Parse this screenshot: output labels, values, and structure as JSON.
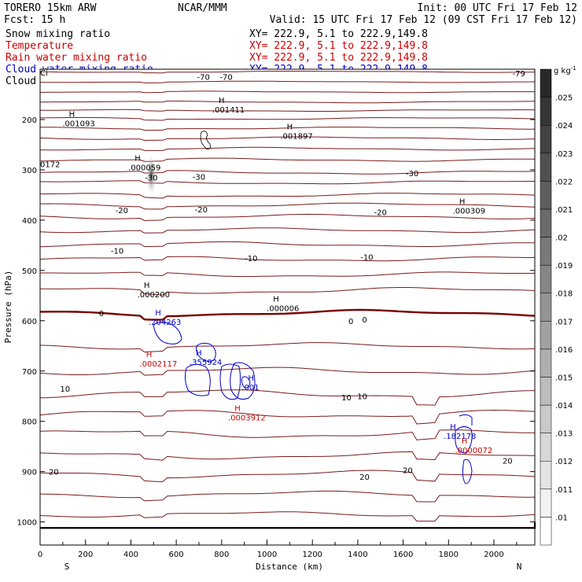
{
  "header": {
    "model": "TORERO  15km ARW",
    "center": "NCAR/MMM",
    "init": "Init: 00 UTC Fri 17 Feb 12",
    "fcst": "Fcst:   15 h",
    "valid": "Valid: 15 UTC Fri 17 Feb 12 (09 CST Fri 17 Feb 12)"
  },
  "fields": [
    {
      "name": "Snow mixing ratio",
      "xy": "XY= 222.9,  5.1 to 222.9,149.8",
      "color": "#000000"
    },
    {
      "name": "Temperature",
      "xy": "XY= 222.9,  5.1 to 222.9,149.8",
      "color": "#cc0000"
    },
    {
      "name": "Rain water mixing ratio",
      "xy": "XY= 222.9,  5.1 to 222.9,149.8",
      "color": "#cc0000"
    },
    {
      "name": "Cloud water mixing ratio",
      "xy": "XY= 222.9,  5.1 to 222.9,149.8",
      "color": "#0000cc"
    },
    {
      "name": "Cloud ice mixing ratio",
      "xy": "XY= 222.9,  5.1 to 222.9,149.8",
      "color": "#000000"
    }
  ],
  "colors": {
    "temperature": "#7a1a1a",
    "zero_isotherm": "#7a0000",
    "rain": "#cc0000",
    "cloud": "#0000cc",
    "snow": "#000000"
  },
  "chart_data": {
    "type": "cross-section",
    "xlabel": "Distance (km)",
    "ylabel": "Pressure (hPa)",
    "xlim": [
      0,
      2180
    ],
    "ylim": [
      1050,
      100
    ],
    "x_ticks": [
      0,
      200,
      400,
      600,
      800,
      1000,
      1200,
      1400,
      1600,
      1800,
      2000
    ],
    "y_ticks": [
      200,
      300,
      400,
      500,
      600,
      700,
      800,
      900,
      1000
    ],
    "endpoints": {
      "left": "S",
      "right": "N"
    },
    "colorbar": {
      "unit": "g kg",
      "unit_exp": "-1",
      "ticks": [
        ".01",
        ".011",
        ".012",
        ".013",
        ".014",
        ".015",
        ".016",
        ".017",
        ".018",
        ".019",
        ".02",
        ".021",
        ".022",
        ".023",
        ".024",
        ".025"
      ]
    },
    "temperature_contours": [
      {
        "level": -70,
        "p": 105,
        "amp": 3
      },
      {
        "level": -70,
        "p": 125,
        "amp": 3
      },
      {
        "level": -70,
        "p": 145,
        "amp": 3
      },
      {
        "level": -70,
        "p": 165,
        "amp": 4
      },
      {
        "level": -70,
        "p": 182,
        "amp": 4
      },
      {
        "level": -60,
        "p": 198,
        "amp": 5
      },
      {
        "level": -60,
        "p": 217,
        "amp": 5
      },
      {
        "level": -50,
        "p": 237,
        "amp": 6
      },
      {
        "level": -40,
        "p": 258,
        "amp": 6
      },
      {
        "level": -40,
        "p": 280,
        "amp": 7
      },
      {
        "level": -30,
        "p": 305,
        "amp": 8
      },
      {
        "level": -30,
        "p": 325,
        "amp": 8
      },
      {
        "level": -20,
        "p": 350,
        "amp": 9
      },
      {
        "level": -20,
        "p": 370,
        "amp": 9
      },
      {
        "level": -20,
        "p": 393,
        "amp": 10
      },
      {
        "level": -10,
        "p": 420,
        "amp": 10
      },
      {
        "level": -10,
        "p": 448,
        "amp": 11
      },
      {
        "level": -10,
        "p": 477,
        "amp": 11
      },
      {
        "level": -10,
        "p": 508,
        "amp": 12
      },
      {
        "level": -10,
        "p": 540,
        "amp": 14
      },
      {
        "level": 0,
        "p": 585,
        "amp": 14,
        "bold": true
      },
      {
        "level": 0,
        "p": 650,
        "amp": 14
      },
      {
        "level": 10,
        "p": 700,
        "amp": 16
      },
      {
        "level": 10,
        "p": 745,
        "amp": 18
      },
      {
        "level": 10,
        "p": 785,
        "amp": 18
      },
      {
        "level": 10,
        "p": 825,
        "amp": 18
      },
      {
        "level": 20,
        "p": 868,
        "amp": 16
      },
      {
        "level": 20,
        "p": 905,
        "amp": 16
      },
      {
        "level": 20,
        "p": 945,
        "amp": 14
      },
      {
        "level": 20,
        "p": 985,
        "amp": 12
      }
    ],
    "contour_labels": [
      {
        "text": "-70",
        "x": 720,
        "p": 115
      },
      {
        "text": "-70",
        "x": 820,
        "p": 115
      },
      {
        "text": "-79",
        "x": 2110,
        "p": 108
      },
      {
        "text": "-30",
        "x": 490,
        "p": 315
      },
      {
        "text": "-30",
        "x": 700,
        "p": 313
      },
      {
        "text": "-30",
        "x": 1640,
        "p": 306
      },
      {
        "text": "-20",
        "x": 360,
        "p": 380
      },
      {
        "text": "-20",
        "x": 710,
        "p": 378
      },
      {
        "text": "-20",
        "x": 1500,
        "p": 384
      },
      {
        "text": "-10",
        "x": 340,
        "p": 460
      },
      {
        "text": "-10",
        "x": 930,
        "p": 475
      },
      {
        "text": "-10",
        "x": 1440,
        "p": 473
      },
      {
        "text": "0",
        "x": 270,
        "p": 585
      },
      {
        "text": "0",
        "x": 1370,
        "p": 600
      },
      {
        "text": "0",
        "x": 1430,
        "p": 597
      },
      {
        "text": "10",
        "x": 110,
        "p": 735
      },
      {
        "text": "10",
        "x": 1350,
        "p": 752
      },
      {
        "text": "10",
        "x": 1420,
        "p": 750
      },
      {
        "text": "20",
        "x": 60,
        "p": 900
      },
      {
        "text": "20",
        "x": 1430,
        "p": 910
      },
      {
        "text": "20",
        "x": 1620,
        "p": 897
      },
      {
        "text": "20",
        "x": 2060,
        "p": 878
      }
    ],
    "maxima": [
      {
        "h": "H",
        "value": ".001093",
        "x": 140,
        "p": 210,
        "color": "#000000"
      },
      {
        "h": "H",
        "value": ".001411",
        "x": 800,
        "p": 183,
        "color": "#000000"
      },
      {
        "h": "H",
        "value": ".001897",
        "x": 1100,
        "p": 235,
        "color": "#000000"
      },
      {
        "h": "H",
        "value": ".000059",
        "x": 430,
        "p": 298,
        "color": "#000000"
      },
      {
        "h": "H",
        "value": ".000309",
        "x": 1860,
        "p": 384,
        "color": "#000000"
      },
      {
        "h": "H",
        "value": ".000200",
        "x": 470,
        "p": 550,
        "color": "#000000"
      },
      {
        "h": "H",
        "value": ".000006",
        "x": 1040,
        "p": 578,
        "color": "#000000"
      },
      {
        "h": "H",
        "value": ".204263",
        "x": 520,
        "p": 605,
        "color": "#0000cc"
      },
      {
        "h": "H",
        "value": ".0002117",
        "x": 480,
        "p": 688,
        "color": "#cc0000"
      },
      {
        "h": "H",
        "value": ".355924",
        "x": 700,
        "p": 685,
        "color": "#0000cc"
      },
      {
        "h": "H",
        "value": ".001",
        "x": 930,
        "p": 735,
        "color": "#0000cc"
      },
      {
        "h": "H",
        "value": ".0003912",
        "x": 870,
        "p": 795,
        "color": "#cc0000"
      },
      {
        "h": "H",
        "value": ".182178",
        "x": 1820,
        "p": 832,
        "color": "#0000cc"
      },
      {
        "h": "H",
        "value": ".0000072",
        "x": 1870,
        "p": 860,
        "color": "#cc0000"
      }
    ],
    "edge_labels": [
      {
        "text": "0172",
        "x": 0,
        "p": 288
      },
      {
        "text": "Ci",
        "x": 0,
        "p": 106
      }
    ]
  }
}
